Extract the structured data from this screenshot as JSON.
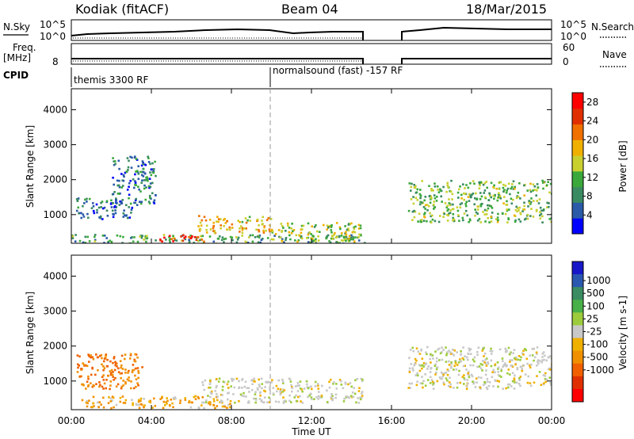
{
  "header": {
    "station": "Kodiak (fitACF)",
    "beam": "Beam 04",
    "date": "18/Mar/2015"
  },
  "ancillary": {
    "nsky_label": "N.Sky",
    "nsky_ticks": [
      "10^5",
      "10^0"
    ],
    "nsearch_label": "N.Search",
    "nsearch_ticks": [
      "10^5",
      "10^0"
    ],
    "freq_label": "Freq.",
    "freq_unit": "[MHz]",
    "freq_ticks": [
      "8"
    ],
    "nave_label": "Nave",
    "nave_ticks": [
      "60",
      "0"
    ],
    "cpid_label": "CPID",
    "cpid_modes": [
      "themis 3300 RF",
      "normalsound (fast) -157 RF"
    ]
  },
  "colors": {
    "power": [
      "#0000ff",
      "#2a5aa8",
      "#3a8a62",
      "#3aa83a",
      "#c8d030",
      "#f0b000",
      "#f07000",
      "#e03000",
      "#ff0000"
    ],
    "velocity": [
      "#1818c8",
      "#2a58b0",
      "#3a8c62",
      "#48b048",
      "#9ccc3c",
      "#c8c8c8",
      "#f0b000",
      "#f09000",
      "#f06000",
      "#e03000",
      "#ff0000"
    ]
  },
  "chart_data": [
    {
      "type": "heatmap",
      "title": "Power",
      "xlabel": "Time UT",
      "ylabel": "Slant Range [km]",
      "x_ticks": [
        "00:00",
        "04:00",
        "08:00",
        "12:00",
        "16:00",
        "20:00",
        "00:00"
      ],
      "x_range_hours": [
        0,
        24
      ],
      "y_ticks": [
        1000,
        2000,
        3000,
        4000
      ],
      "ylim": [
        180,
        4600
      ],
      "colorbar_label": "Power [dB]",
      "colorbar_ticks": [
        4,
        8,
        12,
        16,
        20,
        24,
        28
      ],
      "colorbar_range": [
        0,
        30
      ],
      "data_gap_hours": [
        14.7,
        16.7
      ],
      "mode_change_hour": 9.9,
      "echo_regions": [
        {
          "t0": 0.0,
          "t1": 14.7,
          "r0": 200,
          "r1": 450,
          "level_db": 10
        },
        {
          "t0": 4.1,
          "t1": 6.6,
          "r0": 250,
          "r1": 450,
          "level_db": 27
        },
        {
          "t0": 0.2,
          "t1": 3.0,
          "r0": 900,
          "r1": 1500,
          "level_db": 6
        },
        {
          "t0": 2.0,
          "t1": 4.2,
          "r0": 1300,
          "r1": 2700,
          "level_db": 7
        },
        {
          "t0": 6.3,
          "t1": 10.0,
          "r0": 500,
          "r1": 1000,
          "level_db": 18
        },
        {
          "t0": 10.0,
          "t1": 14.5,
          "r0": 250,
          "r1": 800,
          "level_db": 14
        },
        {
          "t0": 16.8,
          "t1": 24.0,
          "r0": 800,
          "r1": 2000,
          "level_db": 12
        }
      ]
    },
    {
      "type": "heatmap",
      "title": "Velocity",
      "xlabel": "Time UT",
      "ylabel": "Slant Range [km]",
      "x_ticks": [
        "00:00",
        "04:00",
        "08:00",
        "12:00",
        "16:00",
        "20:00",
        "00:00"
      ],
      "x_range_hours": [
        0,
        24
      ],
      "y_ticks": [
        1000,
        2000,
        3000,
        4000
      ],
      "ylim": [
        180,
        4600
      ],
      "colorbar_label": "Velocity [m s-1]",
      "colorbar_ticks": [
        1000,
        500,
        100,
        25,
        -25,
        -100,
        -500,
        -1000
      ],
      "data_gap_hours": [
        14.7,
        16.7
      ],
      "mode_change_hour": 9.9,
      "echo_regions": [
        {
          "t0": 0.5,
          "t1": 8.0,
          "r0": 250,
          "r1": 600,
          "velocity": -100
        },
        {
          "t0": 0.2,
          "t1": 3.5,
          "r0": 800,
          "r1": 1800,
          "velocity": -500
        },
        {
          "t0": 6.5,
          "t1": 14.5,
          "r0": 400,
          "r1": 1100,
          "velocity": 0
        },
        {
          "t0": 16.8,
          "t1": 24.0,
          "r0": 800,
          "r1": 2000,
          "velocity": 0
        }
      ]
    }
  ]
}
